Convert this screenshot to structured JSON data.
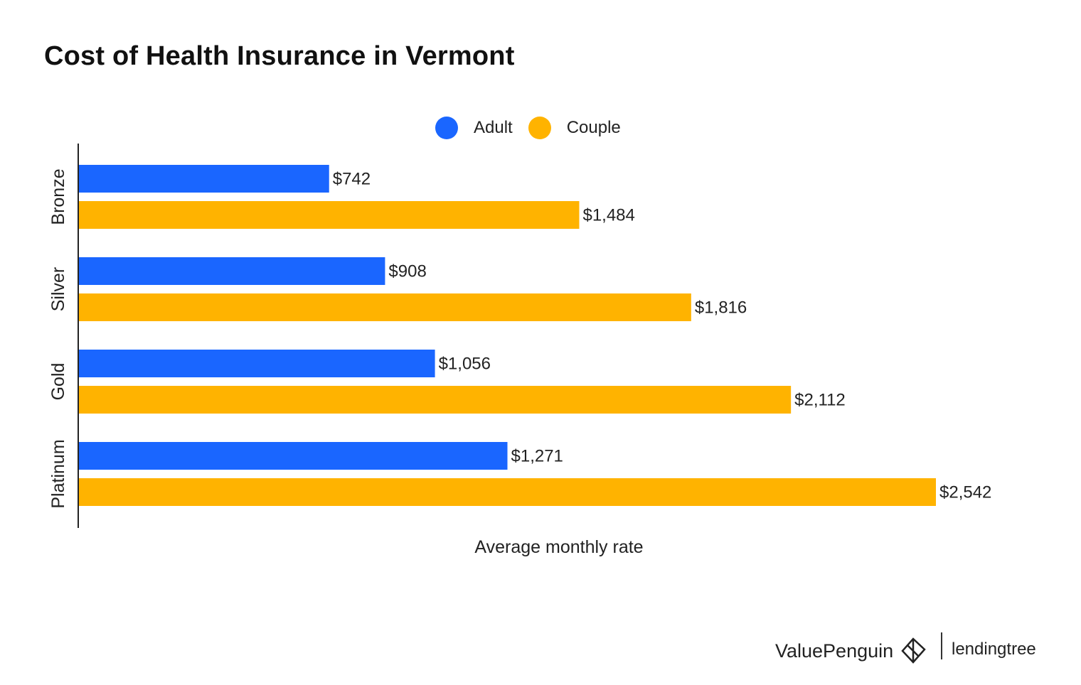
{
  "chart_data": {
    "type": "bar",
    "orientation": "horizontal",
    "title": "Cost of Health Insurance in Vermont",
    "xlabel": "Average monthly rate",
    "ylabel": "",
    "categories": [
      "Bronze",
      "Silver",
      "Gold",
      "Platinum"
    ],
    "series": [
      {
        "name": "Adult",
        "color": "#1A66FF",
        "values": [
          742,
          908,
          1056,
          1271
        ],
        "labels": [
          "$742",
          "$908",
          "$1,056",
          "$1,271"
        ]
      },
      {
        "name": "Couple",
        "color": "#FFB300",
        "values": [
          1484,
          1816,
          2112,
          2542
        ],
        "labels": [
          "$1,484",
          "$1,816",
          "$2,112",
          "$2,542"
        ]
      }
    ],
    "xlim": [
      0,
      2542
    ],
    "grid": false,
    "legend_position": "top"
  },
  "branding": {
    "valuepenguin": "ValuePenguin",
    "lendingtree": "lendingtree"
  }
}
